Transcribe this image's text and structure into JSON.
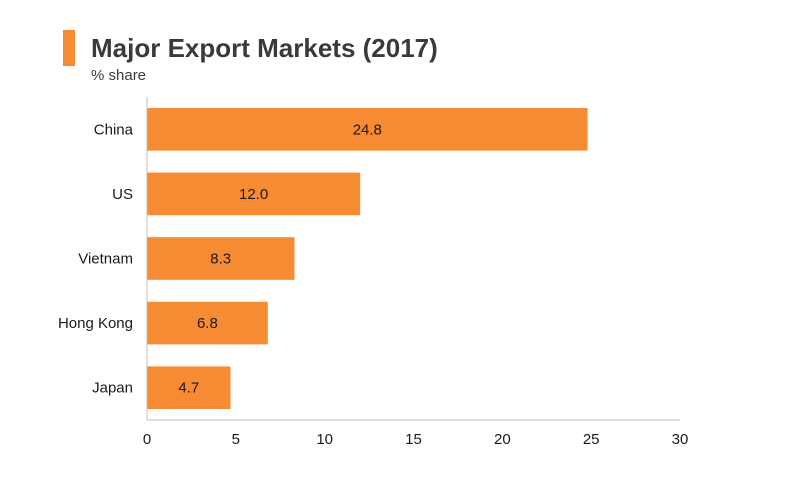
{
  "chart_data": {
    "type": "bar",
    "orientation": "horizontal",
    "title": "Major Export Markets (2017)",
    "subtitle": "% share",
    "categories": [
      "China",
      "US",
      "Vietnam",
      "Hong Kong",
      "Japan"
    ],
    "values": [
      24.8,
      12.0,
      8.3,
      6.8,
      4.7
    ],
    "value_labels": [
      "24.8",
      "12.0",
      "8.3",
      "6.8",
      "4.7"
    ],
    "xlim": [
      0,
      30
    ],
    "xticks": [
      0,
      5,
      10,
      15,
      20,
      25,
      30
    ],
    "xlabel": "",
    "ylabel": "",
    "grid": false,
    "bar_color": "#f68b33",
    "accent_color": "#f68b33"
  }
}
